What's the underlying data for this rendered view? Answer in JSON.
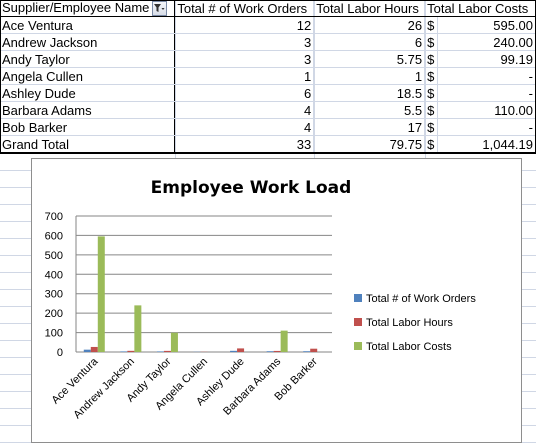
{
  "pivot": {
    "headers": {
      "name": "Supplier/Employee Name",
      "orders": "Total # of Work Orders",
      "hours": "Total Labor Hours",
      "costs": "Total Labor Costs"
    },
    "rows": [
      {
        "name": "Ace Ventura",
        "orders": "12",
        "hours": "26",
        "cur": "$",
        "costs": "595.00"
      },
      {
        "name": "Andrew Jackson",
        "orders": "3",
        "hours": "6",
        "cur": "$",
        "costs": "240.00"
      },
      {
        "name": "Andy Taylor",
        "orders": "3",
        "hours": "5.75",
        "cur": "$",
        "costs": "99.19"
      },
      {
        "name": "Angela Cullen",
        "orders": "1",
        "hours": "1",
        "cur": "$",
        "costs": "-"
      },
      {
        "name": "Ashley Dude",
        "orders": "6",
        "hours": "18.5",
        "cur": "$",
        "costs": "-"
      },
      {
        "name": "Barbara Adams",
        "orders": "4",
        "hours": "5.5",
        "cur": "$",
        "costs": "110.00"
      },
      {
        "name": "Bob Barker",
        "orders": "4",
        "hours": "17",
        "cur": "$",
        "costs": "-"
      }
    ],
    "total": {
      "name": "Grand Total",
      "orders": "33",
      "hours": "79.75",
      "cur": "$",
      "costs": "1,044.19"
    }
  },
  "chart_data": {
    "type": "bar",
    "title": "Employee Work Load",
    "categories": [
      "Ace Ventura",
      "Andrew Jackson",
      "Andy Taylor",
      "Angela Cullen",
      "Ashley Dude",
      "Barbara Adams",
      "Bob Barker"
    ],
    "series": [
      {
        "name": "Total # of Work Orders",
        "values": [
          12,
          3,
          3,
          1,
          6,
          4,
          4
        ],
        "color": "#4f81bd"
      },
      {
        "name": "Total Labor Hours",
        "values": [
          26,
          6,
          5.75,
          1,
          18.5,
          5.5,
          17
        ],
        "color": "#c0504d"
      },
      {
        "name": "Total Labor Costs",
        "values": [
          595,
          240,
          99.19,
          0,
          0,
          110,
          0
        ],
        "color": "#9bbb59"
      }
    ],
    "ylim": [
      0,
      700
    ],
    "yticks": [
      "0",
      "100",
      "200",
      "300",
      "400",
      "500",
      "600",
      "700"
    ],
    "grid": true,
    "legend_position": "right"
  }
}
